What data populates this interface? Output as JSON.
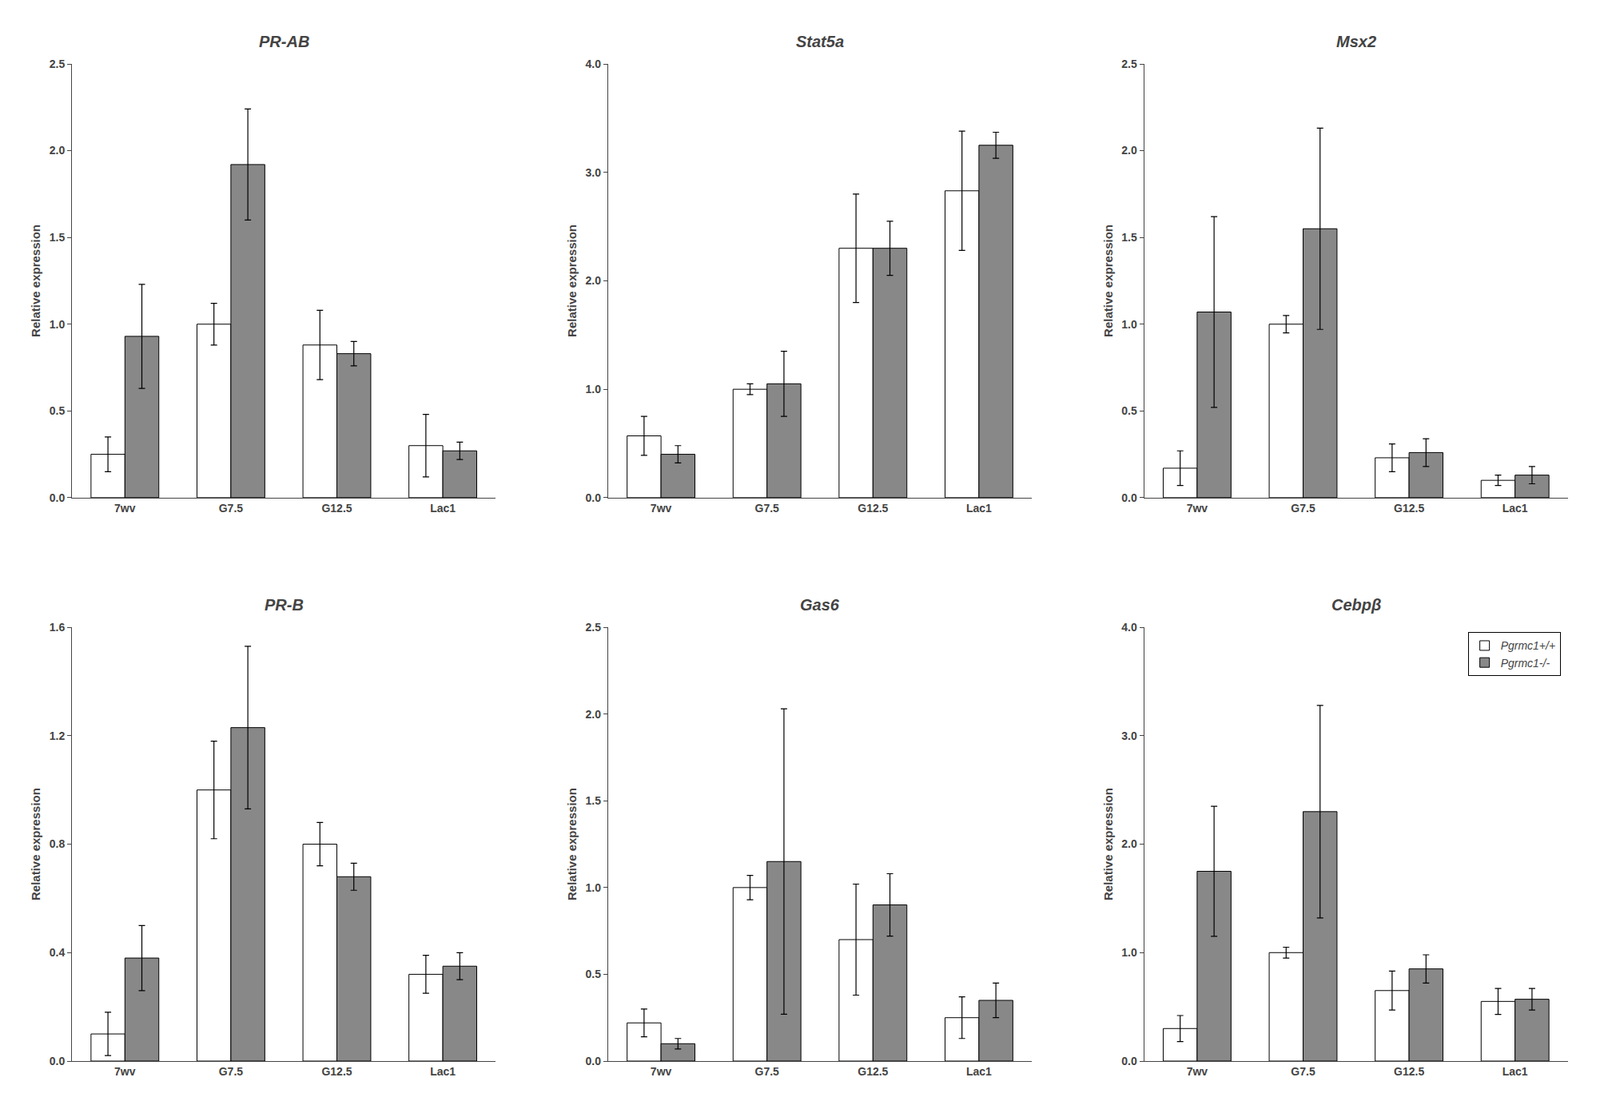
{
  "chart_data": [
    {
      "type": "bar",
      "title": "PR-AB",
      "ylabel": "Relative expression",
      "categories": [
        "7wv",
        "G7.5",
        "G12.5",
        "Lac1"
      ],
      "series": [
        {
          "color": "#FFFFFF",
          "values": [
            0.25,
            1.0,
            0.88,
            0.3
          ],
          "errors": [
            0.1,
            0.12,
            0.2,
            0.18
          ]
        },
        {
          "color": "#888888",
          "values": [
            0.93,
            1.92,
            0.83,
            0.27
          ],
          "errors": [
            0.3,
            0.32,
            0.07,
            0.05
          ]
        }
      ],
      "ylim": [
        0,
        2.5
      ],
      "yticks": [
        {
          "value": 0.0,
          "label": "0.0"
        },
        0.5,
        {
          "value": 1.0,
          "label": "1.0"
        },
        1.5,
        {
          "value": 2.0,
          "label": "2.0"
        },
        2.5
      ],
      "grid": false
    },
    {
      "type": "bar",
      "title": "Stat5a",
      "ylabel": "Relative expression",
      "categories": [
        "7wv",
        "G7.5",
        "G12.5",
        "Lac1"
      ],
      "series": [
        {
          "color": "#FFFFFF",
          "values": [
            0.57,
            1.0,
            2.3,
            2.83
          ],
          "errors": [
            0.18,
            0.05,
            0.5,
            0.55
          ]
        },
        {
          "color": "#888888",
          "values": [
            0.4,
            1.05,
            2.3,
            3.25
          ],
          "errors": [
            0.08,
            0.3,
            0.25,
            0.12
          ]
        }
      ],
      "ylim": [
        0,
        4.0
      ],
      "yticks": [
        {
          "value": 0.0,
          "label": "0.0"
        },
        {
          "value": 1.0,
          "label": "1.0"
        },
        {
          "value": 2.0,
          "label": "2.0"
        },
        {
          "value": 3.0,
          "label": "3.0"
        },
        {
          "value": 4.0,
          "label": "4.0"
        }
      ],
      "grid": false
    },
    {
      "type": "bar",
      "title": "Msx2",
      "ylabel": "Relative expression",
      "categories": [
        "7wv",
        "G7.5",
        "G12.5",
        "Lac1"
      ],
      "series": [
        {
          "color": "#FFFFFF",
          "values": [
            0.17,
            1.0,
            0.23,
            0.1
          ],
          "errors": [
            0.1,
            0.05,
            0.08,
            0.03
          ]
        },
        {
          "color": "#888888",
          "values": [
            1.07,
            1.55,
            0.26,
            0.13
          ],
          "errors": [
            0.55,
            0.58,
            0.08,
            0.05
          ]
        }
      ],
      "ylim": [
        0,
        2.5
      ],
      "yticks": [
        {
          "value": 0.0,
          "label": "0.0"
        },
        0.5,
        {
          "value": 1.0,
          "label": "1.0"
        },
        1.5,
        {
          "value": 2.0,
          "label": "2.0"
        },
        2.5
      ],
      "grid": false
    },
    {
      "type": "bar",
      "title": "PR-B",
      "ylabel": "Relative expression",
      "categories": [
        "7wv",
        "G7.5",
        "G12.5",
        "Lac1"
      ],
      "series": [
        {
          "color": "#FFFFFF",
          "values": [
            0.1,
            1.0,
            0.8,
            0.32
          ],
          "errors": [
            0.08,
            0.18,
            0.08,
            0.07
          ]
        },
        {
          "color": "#888888",
          "values": [
            0.38,
            1.23,
            0.68,
            0.35
          ],
          "errors": [
            0.12,
            0.3,
            0.05,
            0.05
          ]
        }
      ],
      "ylim": [
        0,
        1.6
      ],
      "yticks": [
        {
          "value": 0.0,
          "label": "0.0"
        },
        0.4,
        0.8,
        1.2,
        1.6
      ],
      "grid": false
    },
    {
      "type": "bar",
      "title": "Gas6",
      "ylabel": "Relative expression",
      "categories": [
        "7wv",
        "G7.5",
        "G12.5",
        "Lac1"
      ],
      "series": [
        {
          "color": "#FFFFFF",
          "values": [
            0.22,
            1.0,
            0.7,
            0.25
          ],
          "errors": [
            0.08,
            0.07,
            0.32,
            0.12
          ]
        },
        {
          "color": "#888888",
          "values": [
            0.1,
            1.15,
            0.9,
            0.35
          ],
          "errors": [
            0.03,
            0.88,
            0.18,
            0.1
          ]
        }
      ],
      "ylim": [
        0,
        2.5
      ],
      "yticks": [
        {
          "value": 0.0,
          "label": "0.0"
        },
        0.5,
        {
          "value": 1.0,
          "label": "1.0"
        },
        1.5,
        {
          "value": 2.0,
          "label": "2.0"
        },
        2.5
      ],
      "grid": false
    },
    {
      "type": "bar",
      "title": "Cebpβ",
      "ylabel": "Relative expression",
      "categories": [
        "7wv",
        "G7.5",
        "G12.5",
        "Lac1"
      ],
      "series": [
        {
          "name": "Pgrmc1+/+",
          "color": "#FFFFFF",
          "values": [
            0.3,
            1.0,
            0.65,
            0.55
          ],
          "errors": [
            0.12,
            0.05,
            0.18,
            0.12
          ]
        },
        {
          "name": "Pgrmc1-/-",
          "color": "#888888",
          "values": [
            1.75,
            2.3,
            0.85,
            0.57
          ],
          "errors": [
            0.6,
            0.98,
            0.13,
            0.1
          ]
        }
      ],
      "ylim": [
        0,
        4.0
      ],
      "yticks": [
        {
          "value": 0.0,
          "label": "0.0"
        },
        {
          "value": 1.0,
          "label": "1.0"
        },
        {
          "value": 2.0,
          "label": "2.0"
        },
        {
          "value": 3.0,
          "label": "3.0"
        },
        {
          "value": 4.0,
          "label": "4.0"
        }
      ],
      "grid": false,
      "legend": "upper right"
    }
  ]
}
